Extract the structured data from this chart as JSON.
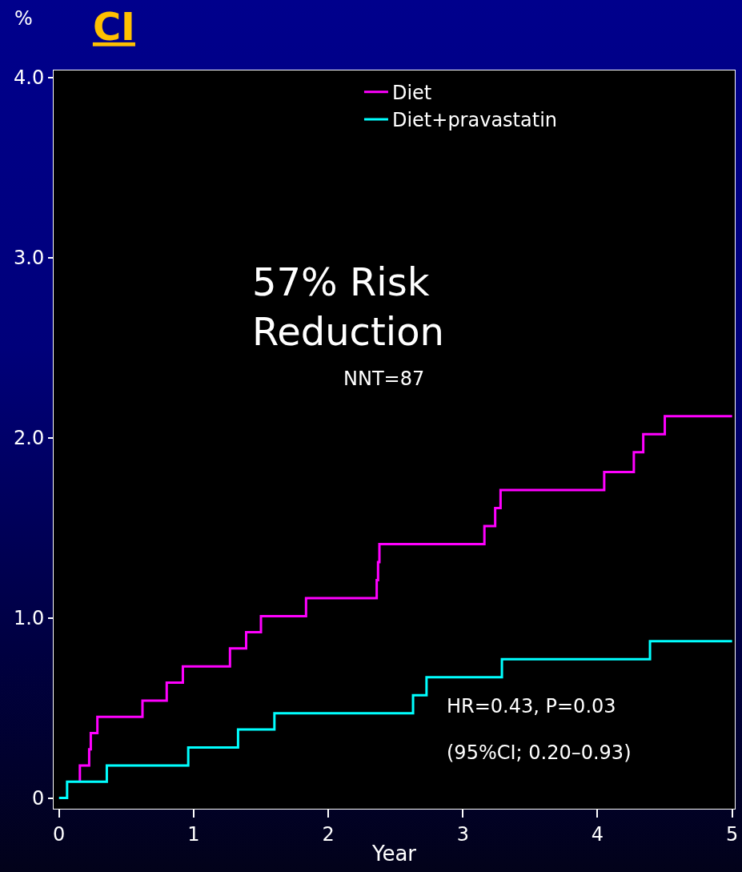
{
  "chart_data": {
    "type": "step",
    "title": "CI",
    "xlabel": "Year",
    "ylabel": "%",
    "annotations": [
      "57% Risk Reduction",
      "NNT=87",
      "HR=0.43, P=0.03",
      "(95%CI; 0.20–0.93)"
    ],
    "series": [
      {
        "name": "Diet",
        "color": "#ff00ff",
        "x": [
          0.155,
          0.155,
          0.224,
          0.236,
          0.285,
          0.62,
          0.8,
          0.92,
          1.27,
          1.39,
          1.5,
          1.835,
          2.36,
          2.37,
          2.38,
          3.16,
          3.24,
          3.28,
          4.05,
          4.27,
          4.34,
          4.5,
          5.0
        ],
        "values": [
          0.09,
          0.18,
          0.27,
          0.36,
          0.45,
          0.54,
          0.64,
          0.73,
          0.83,
          0.92,
          1.01,
          1.11,
          1.21,
          1.31,
          1.41,
          1.51,
          1.61,
          1.71,
          1.81,
          1.92,
          2.02,
          2.12,
          2.12
        ]
      },
      {
        "name": "Diet+pravastatin",
        "color": "#00ffff",
        "x": [
          0,
          0.06,
          0.355,
          0.96,
          1.33,
          1.6,
          2.63,
          2.73,
          3.29,
          4.39,
          5.0
        ],
        "values": [
          0,
          0.09,
          0.18,
          0.28,
          0.38,
          0.47,
          0.57,
          0.67,
          0.77,
          0.87,
          0.87
        ]
      }
    ],
    "xlim": [
      -0.04,
      5.02
    ],
    "ylim": [
      -0.06,
      4.04
    ],
    "xticks": [
      {
        "value": 0,
        "label": "0"
      },
      1,
      2,
      3,
      4,
      5
    ],
    "yticks": [
      {
        "value": 0,
        "label": "0"
      },
      {
        "value": 1,
        "label": "1.0"
      },
      {
        "value": 2,
        "label": "2.0"
      },
      {
        "value": 3,
        "label": "3.0"
      },
      {
        "value": 4,
        "label": "4.0"
      }
    ],
    "legend": "top right",
    "grid": false,
    "line_style": "solid",
    "marker": "none"
  }
}
